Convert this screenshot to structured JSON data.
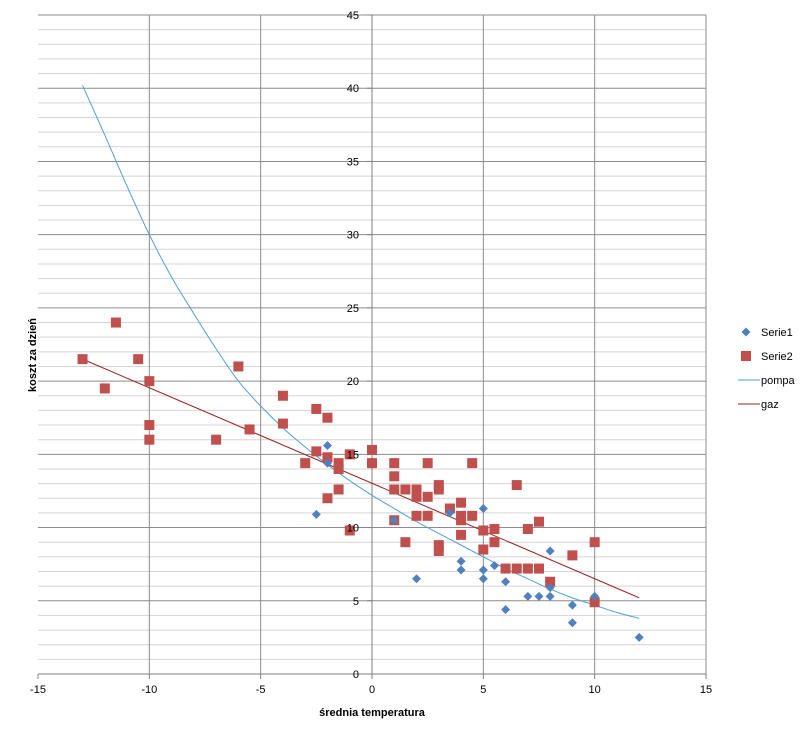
{
  "chart_data": {
    "type": "scatter",
    "xlabel": "średnia temperatura",
    "ylabel": "koszt za dzień",
    "xlim": [
      -15,
      15
    ],
    "ylim": [
      0,
      45
    ],
    "x_ticks": [
      -15,
      -10,
      -5,
      0,
      5,
      10,
      15
    ],
    "y_ticks": [
      0,
      5,
      10,
      15,
      20,
      25,
      30,
      35,
      40,
      45
    ],
    "grid": true,
    "legend_position": "right",
    "series": [
      {
        "name": "Serie1",
        "marker": "diamond",
        "color": "#4f81bd",
        "x": [
          -2.5,
          -2,
          -2,
          1,
          2,
          3.5,
          4,
          4,
          5,
          5,
          5,
          5.5,
          6,
          6,
          7,
          7.5,
          8,
          8,
          8,
          9,
          9,
          10,
          12
        ],
        "y": [
          10.9,
          15.6,
          14.4,
          10.5,
          6.5,
          11.0,
          7.7,
          7.1,
          11.3,
          7.1,
          6.5,
          7.4,
          6.3,
          4.4,
          5.3,
          5.3,
          8.4,
          5.9,
          5.3,
          4.7,
          3.5,
          5.3,
          2.5
        ]
      },
      {
        "name": "Serie2",
        "marker": "square",
        "color": "#c0504d",
        "x": [
          -13,
          -12,
          -11.5,
          -10.5,
          -10,
          -10,
          -10,
          -7,
          -6,
          -5.5,
          -4,
          -4,
          -3,
          -2.5,
          -2.5,
          -2,
          -2,
          -2,
          -1.5,
          -1.5,
          -1.5,
          -1,
          -1,
          0,
          0,
          1,
          1,
          1,
          1,
          1.5,
          1.5,
          2,
          2,
          2,
          2.5,
          2.5,
          2.5,
          3,
          3,
          3,
          3,
          3.5,
          4,
          4,
          4,
          4,
          4.5,
          4.5,
          5,
          5,
          5.5,
          5.5,
          6,
          6.5,
          6.5,
          7,
          7,
          7.5,
          7.5,
          8,
          9,
          10,
          10
        ],
        "y": [
          21.5,
          19.5,
          24.0,
          21.5,
          20.0,
          17.0,
          16.0,
          16.0,
          21.0,
          16.7,
          19.0,
          17.1,
          14.4,
          18.1,
          15.2,
          17.5,
          14.8,
          12.0,
          14.4,
          14.0,
          12.6,
          15.0,
          9.8,
          15.3,
          14.4,
          14.4,
          13.5,
          12.6,
          10.5,
          12.6,
          9.0,
          12.6,
          12.1,
          10.8,
          14.4,
          12.1,
          10.8,
          12.9,
          12.6,
          8.8,
          8.4,
          11.3,
          11.7,
          10.8,
          10.5,
          9.5,
          14.4,
          10.8,
          9.8,
          8.5,
          9.9,
          9.0,
          7.2,
          12.9,
          7.2,
          9.9,
          7.2,
          10.4,
          7.2,
          6.3,
          8.1,
          9.0,
          4.9
        ]
      },
      {
        "name": "pompa",
        "type": "trendline",
        "color": "#4f9fd8",
        "x": [
          -13,
          -12,
          -11,
          -10,
          -9,
          -8,
          -7,
          -6,
          -5,
          -4,
          -3,
          -2,
          -1,
          0,
          1,
          2,
          3,
          4,
          5,
          6,
          7,
          8,
          9,
          10,
          11,
          12
        ],
        "y": [
          40.2,
          36.8,
          33.3,
          30.0,
          27.1,
          24.6,
          22.2,
          20.0,
          18.3,
          16.8,
          15.5,
          14.3,
          13.2,
          12.2,
          11.3,
          10.4,
          9.6,
          8.8,
          8.0,
          7.2,
          6.5,
          5.8,
          5.2,
          4.7,
          4.2,
          3.8
        ]
      },
      {
        "name": "gaz",
        "type": "trendline",
        "color": "#9b1c1c",
        "x": [
          -13,
          12
        ],
        "y": [
          21.5,
          5.2
        ]
      }
    ]
  }
}
